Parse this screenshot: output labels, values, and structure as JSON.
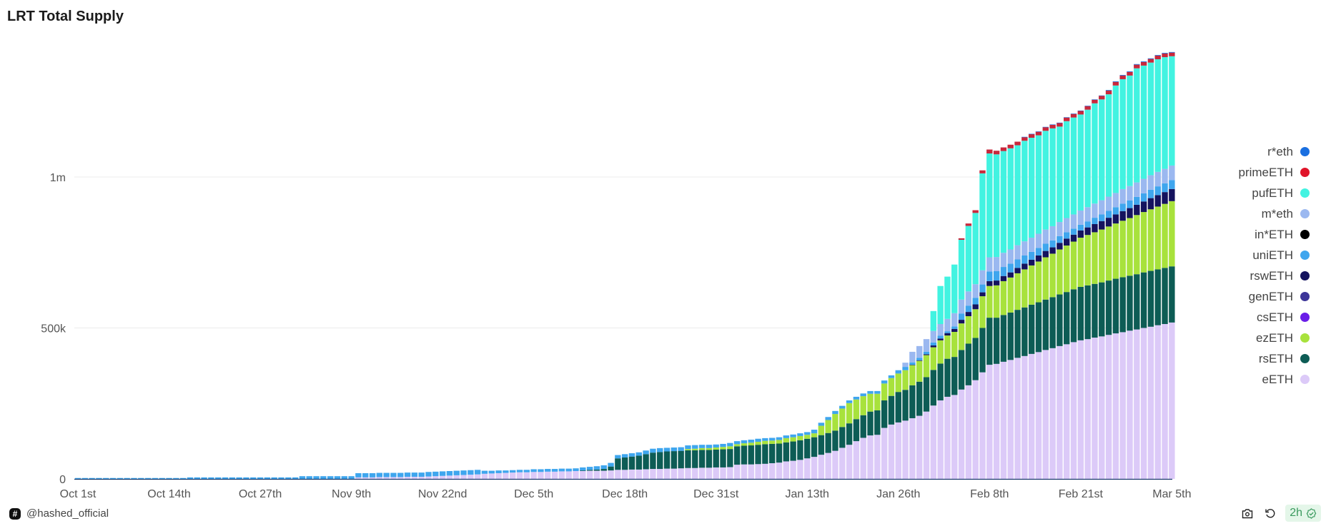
{
  "title": "LRT Total Supply",
  "footer": {
    "author": "@hashed_official",
    "freshness": "2h"
  },
  "chart_data": {
    "type": "bar",
    "stacked": true,
    "title": "LRT Total Supply",
    "unit": "thousand ETH",
    "num_days": 157,
    "x_ticks": [
      "Oct 1st",
      "Oct 14th",
      "Oct 27th",
      "Nov 9th",
      "Nov 22nd",
      "Dec 5th",
      "Dec 18th",
      "Dec 31st",
      "Jan 13th",
      "Jan 26th",
      "Feb 8th",
      "Feb 21st",
      "Mar 5th"
    ],
    "x_tick_every_days": 13,
    "y_ticks": [
      {
        "value": 0,
        "label": "0"
      },
      {
        "value": 500,
        "label": "500k"
      },
      {
        "value": 1000,
        "label": "1m"
      }
    ],
    "ylim": [
      0,
      1500
    ],
    "grid": true,
    "legend_position": "right",
    "series": [
      {
        "name": "eETH",
        "color": "#dccaf8",
        "start_day": 40,
        "values": [
          5,
          5,
          5,
          6,
          6,
          6,
          6,
          7,
          7,
          7,
          8,
          9,
          10,
          11,
          12,
          13,
          14,
          15,
          17,
          18,
          19,
          20,
          21,
          22,
          22,
          23,
          23,
          24,
          24,
          25,
          25,
          26,
          26,
          27,
          27,
          27,
          28,
          30,
          30,
          31,
          31,
          32,
          33,
          33,
          34,
          34,
          35,
          36,
          36,
          37,
          37,
          38,
          38,
          39,
          47,
          48,
          48,
          49,
          50,
          52,
          54,
          58,
          60,
          63,
          68,
          73,
          80,
          86,
          93,
          103,
          113,
          125,
          136,
          144,
          146,
          169,
          180,
          187,
          193,
          201,
          209,
          223,
          243,
          260,
          272,
          278,
          296,
          310,
          327,
          353,
          378,
          381,
          388,
          394,
          401,
          407,
          414,
          420,
          427,
          433,
          440,
          446,
          453,
          459,
          463,
          468,
          472,
          477,
          482,
          486,
          491,
          495,
          500,
          504,
          509,
          513,
          518
        ]
      },
      {
        "name": "rsETH",
        "color": "#0d5c55",
        "start_day": 72,
        "values": [
          2,
          3,
          4,
          6,
          13,
          38,
          41,
          43,
          46,
          50,
          54,
          56,
          57,
          58,
          58,
          59,
          59,
          59,
          59,
          59,
          60,
          60,
          61,
          62,
          63,
          64,
          65,
          64,
          63,
          63,
          64,
          65,
          65,
          65,
          65,
          66,
          67,
          69,
          71,
          73,
          75,
          79,
          81,
          91,
          95,
          101,
          102,
          109,
          113,
          114,
          118,
          122,
          126,
          126,
          131,
          138,
          140,
          147,
          156,
          153,
          155,
          157,
          159,
          161,
          163,
          165,
          167,
          169,
          171,
          173,
          175,
          177,
          178,
          178,
          179,
          180,
          181,
          182,
          182,
          183,
          184,
          185,
          185,
          186,
          186
        ]
      },
      {
        "name": "csETH",
        "color": "#6a1ee8",
        "start_day": 0,
        "values": []
      },
      {
        "name": "genETH",
        "color": "#3d3598",
        "start_day": 0,
        "values": []
      },
      {
        "name": "ezETH",
        "color": "#a8e23c",
        "start_day": 87,
        "values": [
          4,
          5,
          6,
          6,
          7,
          8,
          9,
          7,
          8,
          9,
          10,
          11,
          11,
          12,
          14,
          14,
          14,
          13,
          13,
          31,
          43,
          55,
          61,
          67,
          65,
          63,
          59,
          55,
          56,
          59,
          61,
          65,
          67,
          69,
          73,
          75,
          77,
          77,
          83,
          88,
          91,
          95,
          105,
          105,
          107,
          112,
          116,
          121,
          126,
          130,
          135,
          140,
          144,
          149,
          154,
          158,
          163,
          167,
          171,
          175,
          179,
          183,
          187,
          191,
          196,
          200,
          204,
          208,
          212,
          216
        ]
      },
      {
        "name": "rswETH",
        "color": "#15135e",
        "start_day": 119,
        "values": [
          1,
          2,
          3,
          6,
          6,
          8,
          10,
          12,
          14,
          16,
          13,
          16,
          16,
          17,
          17,
          18,
          19,
          19,
          20,
          21,
          21,
          22,
          23,
          23,
          24,
          25,
          27,
          28,
          29,
          30,
          32,
          33,
          34,
          35,
          37,
          38,
          39,
          40
        ]
      },
      {
        "name": "uniETH",
        "color": "#3fa6ee",
        "start_day": 0,
        "values": [
          3,
          3,
          3,
          3,
          3,
          3,
          3,
          3,
          3,
          3,
          3,
          3,
          3,
          3,
          3,
          3,
          5,
          5,
          5,
          5,
          5,
          5,
          5,
          5,
          5,
          5,
          5,
          5,
          5,
          5,
          5,
          5,
          9,
          9,
          9,
          9,
          9,
          9,
          9,
          9,
          14,
          14,
          14,
          14,
          14,
          14,
          14,
          14,
          14,
          14,
          15,
          15,
          15,
          15,
          15,
          15,
          15,
          15,
          10,
          9,
          9,
          8,
          8,
          8,
          8,
          9,
          9,
          9,
          9,
          9,
          9,
          9,
          10,
          10,
          11,
          12,
          12,
          11,
          11,
          11,
          11,
          12,
          13,
          13,
          12,
          12,
          12,
          12,
          12,
          11,
          11,
          10,
          10,
          11,
          10,
          10,
          10,
          10,
          9,
          9,
          9,
          9,
          9,
          9,
          9,
          12,
          10,
          10,
          10,
          9,
          9,
          9,
          9,
          9,
          9,
          10,
          9,
          11,
          11,
          8,
          8,
          8,
          10,
          9,
          6,
          8,
          21,
          21,
          22,
          26,
          32,
          31,
          30,
          29,
          28,
          27,
          26,
          25,
          24,
          23,
          22,
          21,
          20,
          19,
          20,
          21,
          22,
          23,
          24,
          25,
          25,
          26,
          27,
          28,
          29,
          29,
          30
        ]
      },
      {
        "name": "in*ETH",
        "color": "#000000",
        "start_day": 0,
        "values": []
      },
      {
        "name": "m*eth",
        "color": "#9bb8f0",
        "start_day": 118,
        "values": [
          14,
          35,
          39,
          42,
          38,
          39,
          41,
          44,
          46,
          47,
          45,
          47,
          47,
          47,
          47,
          47,
          47,
          47,
          47,
          47,
          47,
          47,
          47,
          47,
          47,
          47,
          47,
          47,
          47,
          47,
          47,
          48,
          48,
          48,
          48,
          48,
          48,
          48,
          48
        ]
      },
      {
        "name": "pufETH",
        "color": "#42f3e1",
        "start_day": 122,
        "values": [
          66,
          126,
          140,
          161,
          198,
          217,
          236,
          321,
          344,
          340,
          337,
          335,
          331,
          333,
          331,
          326,
          327,
          324,
          316,
          321,
          321,
          318,
          323,
          332,
          334,
          339,
          356,
          364,
          366,
          378,
          375,
          373,
          373,
          370,
          362
        ]
      },
      {
        "name": "primeETH",
        "color": "#c8283c",
        "start_day": 126,
        "values": [
          5,
          8,
          9,
          10,
          13,
          12,
          12,
          12,
          12,
          12,
          12,
          12,
          12,
          12,
          12,
          12,
          12,
          12,
          12,
          12,
          12,
          12,
          12,
          12,
          12,
          12,
          12,
          12,
          12,
          12,
          12
        ]
      },
      {
        "name": "r*eth",
        "color": "#1a6fe0",
        "start_day": 135,
        "values": [
          1,
          1,
          1,
          1,
          1,
          1,
          1,
          1,
          1,
          1,
          1,
          1,
          2,
          2,
          2,
          2,
          2,
          2,
          2,
          2,
          2,
          2
        ]
      }
    ]
  },
  "legend": [
    {
      "label": "r*eth",
      "color": "#1a6fe0"
    },
    {
      "label": "primeETH",
      "color": "#e0142a"
    },
    {
      "label": "pufETH",
      "color": "#42f3e1"
    },
    {
      "label": "m*eth",
      "color": "#9bb8f0"
    },
    {
      "label": "in*ETH",
      "color": "#000000"
    },
    {
      "label": "uniETH",
      "color": "#3fa6ee"
    },
    {
      "label": "rswETH",
      "color": "#15135e"
    },
    {
      "label": "genETH",
      "color": "#3d3598"
    },
    {
      "label": "csETH",
      "color": "#6a1ee8"
    },
    {
      "label": "ezETH",
      "color": "#a8e23c"
    },
    {
      "label": "rsETH",
      "color": "#0d5c55"
    },
    {
      "label": "eETH",
      "color": "#dccaf8"
    }
  ]
}
